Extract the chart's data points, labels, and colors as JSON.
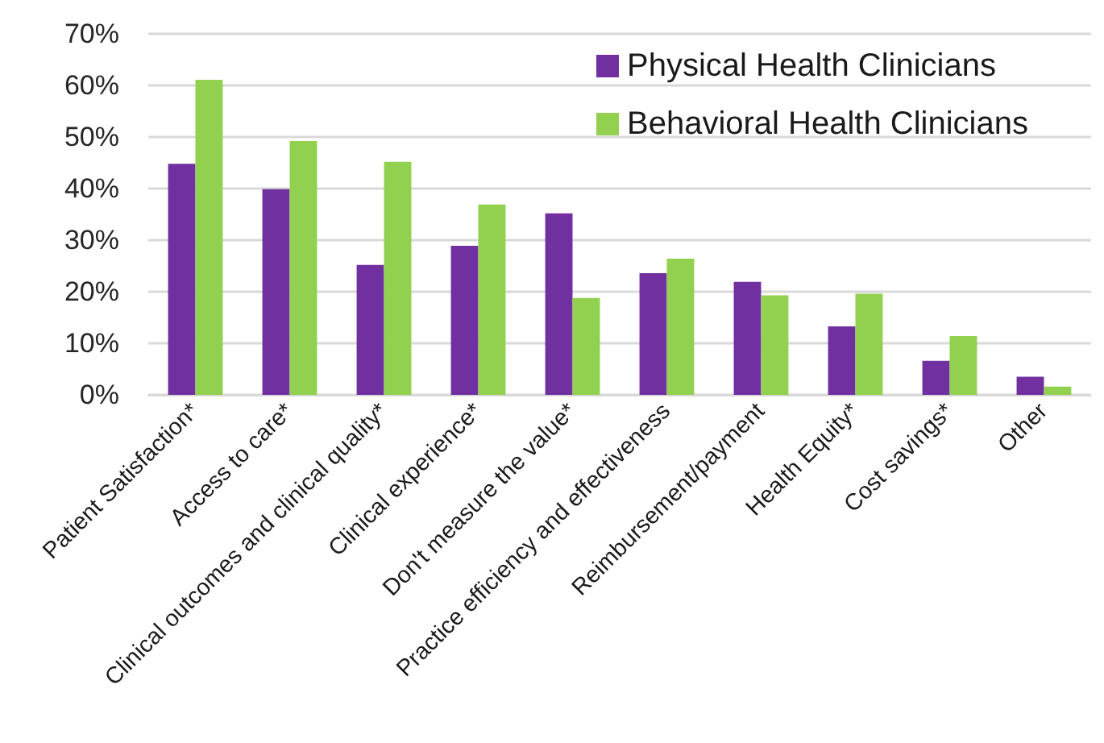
{
  "chart_data": {
    "type": "bar",
    "categories": [
      "Patient Satisfaction*",
      "Access to care*",
      "Clinical outcomes and clinical quality*",
      "Clinical experience*",
      "Don't measure the value*",
      "Practice efficiency and effectiveness",
      "Reimbursement/payment",
      "Health Equity*",
      "Cost savings*",
      "Other"
    ],
    "series": [
      {
        "name": "Physical Health Clinicians",
        "color": "#7030a0",
        "values": [
          44.8,
          39.9,
          25.2,
          28.9,
          35.2,
          23.6,
          21.9,
          13.3,
          6.6,
          3.5
        ]
      },
      {
        "name": "Behavioral Health Clinicians",
        "color": "#92d050",
        "values": [
          61.1,
          49.2,
          45.2,
          36.9,
          18.8,
          26.4,
          19.3,
          19.6,
          11.4,
          1.6
        ]
      }
    ],
    "ylim": [
      0,
      70
    ],
    "yticks": [
      {
        "value": 0,
        "label": "0%"
      },
      {
        "value": 10,
        "label": "10%"
      },
      {
        "value": 20,
        "label": "20%"
      },
      {
        "value": 30,
        "label": "30%"
      },
      {
        "value": 40,
        "label": "40%"
      },
      {
        "value": 50,
        "label": "50%"
      },
      {
        "value": 60,
        "label": "60%"
      },
      {
        "value": 70,
        "label": "70%"
      }
    ],
    "grid": "y",
    "legend": "top right"
  }
}
